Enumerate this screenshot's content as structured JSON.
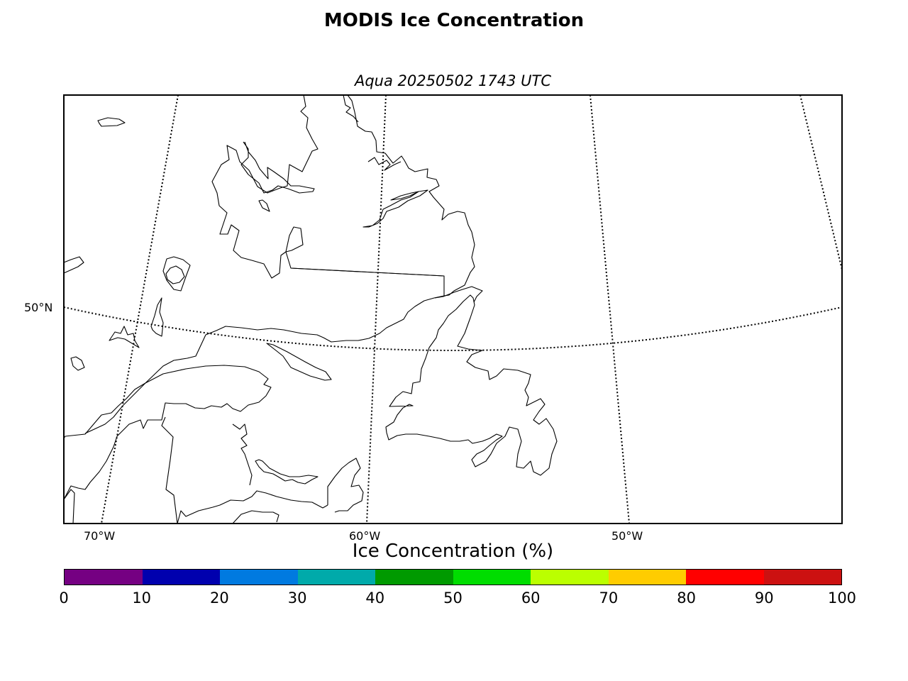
{
  "title": "MODIS Ice Concentration",
  "subtitle": "Aqua 20250502 1743 UTC",
  "map": {
    "lat_labels": [
      {
        "text": "50°N",
        "lat": 50
      }
    ],
    "lon_labels": [
      {
        "text": "70°W",
        "lon": -70
      },
      {
        "text": "60°W",
        "lon": -60
      },
      {
        "text": "50°W",
        "lon": -50
      }
    ],
    "graticule_style": "dotted"
  },
  "colorbar": {
    "label": "Ice Concentration (%)",
    "min": 0,
    "max": 100,
    "ticks": [
      "0",
      "10",
      "20",
      "30",
      "40",
      "50",
      "60",
      "70",
      "80",
      "90",
      "100"
    ],
    "colors": [
      "#750082",
      "#0000ae",
      "#007ae0",
      "#00aaaa",
      "#009a00",
      "#00dd00",
      "#bbff00",
      "#ffcc00",
      "#ff0000",
      "#cc1111"
    ]
  }
}
